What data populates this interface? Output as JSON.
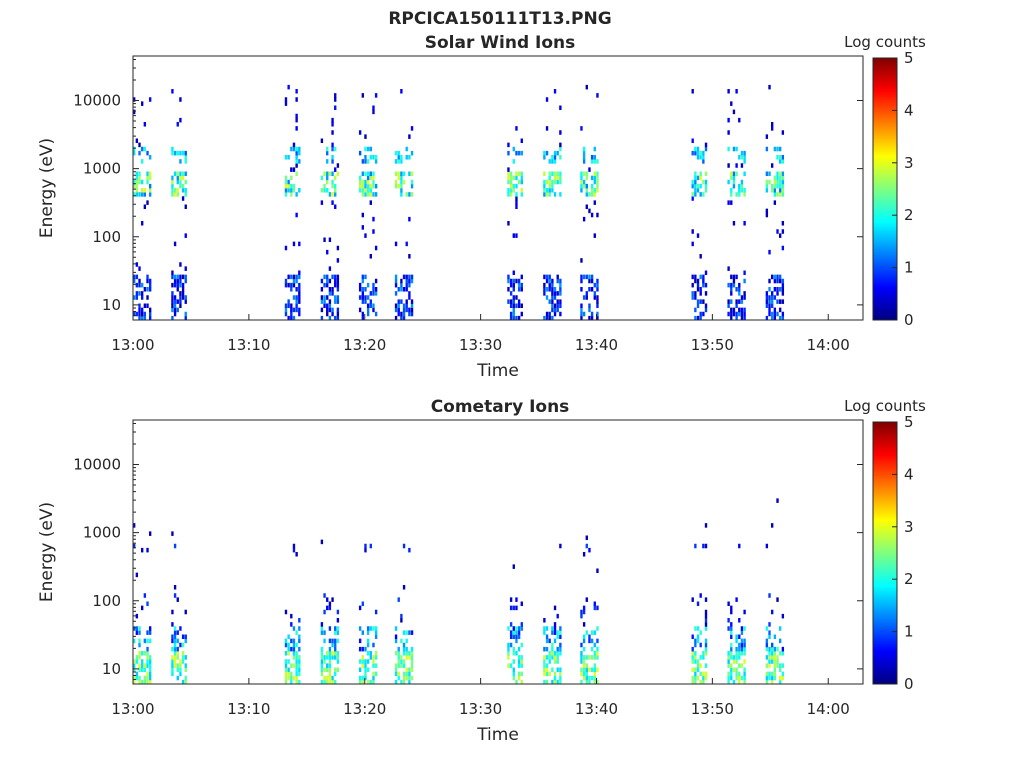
{
  "title": "RPCICA150111T13.PNG",
  "colorbar_stops": [
    "#00007F",
    "#0000FF",
    "#007FFF",
    "#00FFFF",
    "#7FFF7F",
    "#FFFF00",
    "#FF7F00",
    "#FF0000",
    "#7F0000"
  ],
  "chart_data": [
    {
      "type": "heatmap",
      "title": "Solar Wind Ions",
      "xlabel": "Time",
      "ylabel": "Energy (eV)",
      "yscale": "log",
      "ylim": [
        6,
        45000
      ],
      "xlim_min": [
        0,
        63
      ],
      "x_ticks": [
        {
          "t": 0,
          "label": "13:00"
        },
        {
          "t": 10,
          "label": "13:10"
        },
        {
          "t": 20,
          "label": "13:20"
        },
        {
          "t": 30,
          "label": "13:30"
        },
        {
          "t": 40,
          "label": "13:40"
        },
        {
          "t": 50,
          "label": "13:50"
        },
        {
          "t": 60,
          "label": "14:00"
        }
      ],
      "y_ticks": [
        {
          "v": 10,
          "label": "10"
        },
        {
          "v": 100,
          "label": "100"
        },
        {
          "v": 1000,
          "label": "1000"
        },
        {
          "v": 10000,
          "label": "10000"
        }
      ],
      "colorbar": {
        "label": "Log counts",
        "range": [
          0,
          5
        ],
        "ticks": [
          "0",
          "1",
          "2",
          "3",
          "4",
          "5"
        ]
      },
      "bursts": [
        {
          "t0": 0.0,
          "t1": 1.4
        },
        {
          "t0": 3.3,
          "t1": 4.6
        },
        {
          "t0": 13.1,
          "t1": 14.4
        },
        {
          "t0": 16.2,
          "t1": 17.6
        },
        {
          "t0": 19.5,
          "t1": 20.9
        },
        {
          "t0": 22.6,
          "t1": 24.0
        },
        {
          "t0": 32.3,
          "t1": 33.6
        },
        {
          "t0": 35.4,
          "t1": 36.8
        },
        {
          "t0": 38.6,
          "t1": 40.0
        },
        {
          "t0": 48.2,
          "t1": 49.5
        },
        {
          "t0": 51.3,
          "t1": 52.8
        },
        {
          "t0": 54.6,
          "t1": 56.0
        }
      ]
    },
    {
      "type": "heatmap",
      "title": "Cometary Ions",
      "xlabel": "Time",
      "ylabel": "Energy (eV)",
      "yscale": "log",
      "ylim": [
        6,
        45000
      ],
      "xlim_min": [
        0,
        63
      ],
      "x_ticks": [
        {
          "t": 0,
          "label": "13:00"
        },
        {
          "t": 10,
          "label": "13:10"
        },
        {
          "t": 20,
          "label": "13:20"
        },
        {
          "t": 30,
          "label": "13:30"
        },
        {
          "t": 40,
          "label": "13:40"
        },
        {
          "t": 50,
          "label": "13:50"
        },
        {
          "t": 60,
          "label": "14:00"
        }
      ],
      "y_ticks": [
        {
          "v": 10,
          "label": "10"
        },
        {
          "v": 100,
          "label": "100"
        },
        {
          "v": 1000,
          "label": "1000"
        },
        {
          "v": 10000,
          "label": "10000"
        }
      ],
      "colorbar": {
        "label": "Log counts",
        "range": [
          0,
          5
        ],
        "ticks": [
          "0",
          "1",
          "2",
          "3",
          "4",
          "5"
        ]
      },
      "bursts": [
        {
          "t0": 0.0,
          "t1": 1.4
        },
        {
          "t0": 3.3,
          "t1": 4.6
        },
        {
          "t0": 13.1,
          "t1": 14.4
        },
        {
          "t0": 16.2,
          "t1": 17.6
        },
        {
          "t0": 19.5,
          "t1": 20.9
        },
        {
          "t0": 22.6,
          "t1": 24.0
        },
        {
          "t0": 32.3,
          "t1": 33.6
        },
        {
          "t0": 35.4,
          "t1": 36.8
        },
        {
          "t0": 38.6,
          "t1": 40.0
        },
        {
          "t0": 48.2,
          "t1": 49.5
        },
        {
          "t0": 51.3,
          "t1": 52.8
        },
        {
          "t0": 54.6,
          "t1": 56.0
        }
      ]
    }
  ]
}
